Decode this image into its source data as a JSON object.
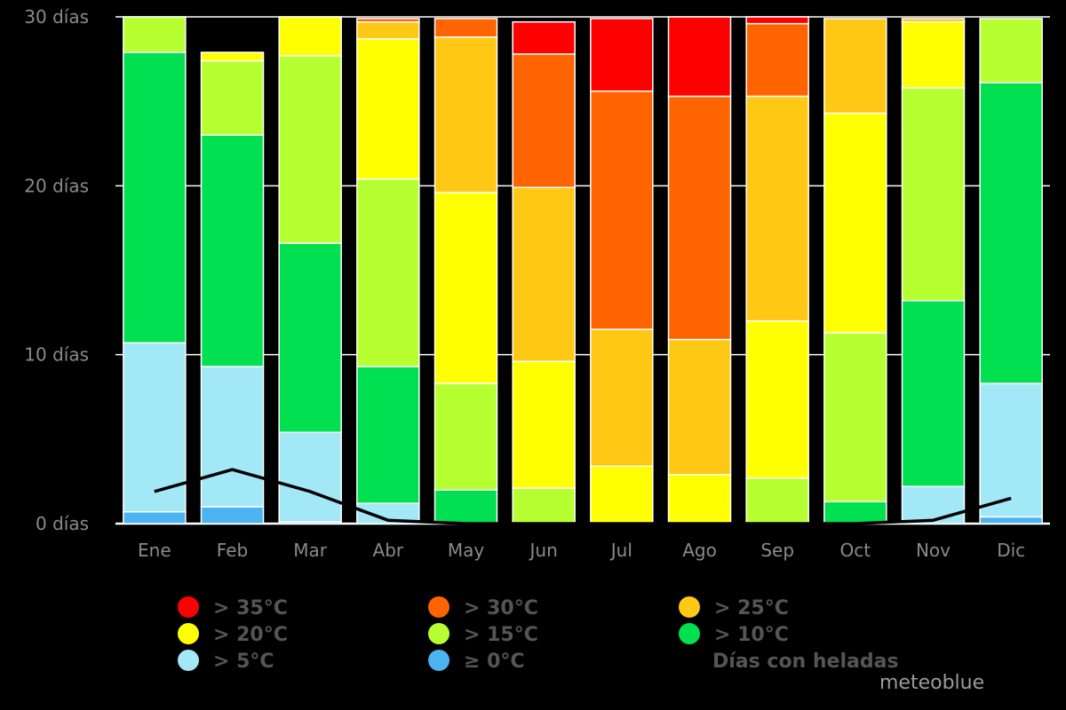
{
  "chart_data": {
    "type": "bar",
    "stacked": true,
    "categories": [
      "Ene",
      "Feb",
      "Mar",
      "Abr",
      "May",
      "Jun",
      "Jul",
      "Ago",
      "Sep",
      "Oct",
      "Nov",
      "Dic"
    ],
    "y_tick_labels": [
      "0 días",
      "10 días",
      "20 días",
      "30 días"
    ],
    "y_ticks": [
      0,
      10,
      20,
      30
    ],
    "ylim": [
      0,
      30
    ],
    "grid": true,
    "legend_position": "bottom",
    "series": [
      {
        "name": "≥ 0°C",
        "color": "#4bb3f0",
        "values": [
          0.7,
          1.0,
          0.1,
          0.0,
          0.0,
          0.0,
          0.0,
          0.0,
          0.0,
          0.0,
          0.0,
          0.4
        ]
      },
      {
        "name": "> 5°C",
        "color": "#a3e8f6",
        "values": [
          10.0,
          8.3,
          5.3,
          1.2,
          0.0,
          0.0,
          0.0,
          0.0,
          0.0,
          0.0,
          2.2,
          7.9
        ]
      },
      {
        "name": "> 10°C",
        "color": "#00e050",
        "values": [
          17.2,
          13.7,
          11.2,
          8.1,
          2.0,
          0.0,
          0.0,
          0.0,
          0.0,
          1.3,
          11.0,
          17.8
        ]
      },
      {
        "name": "> 15°C",
        "color": "#b6ff30",
        "values": [
          2.1,
          4.4,
          11.1,
          11.1,
          6.3,
          2.1,
          0.0,
          0.0,
          2.7,
          10.0,
          12.6,
          3.8
        ]
      },
      {
        "name": "> 20°C",
        "color": "#ffff00",
        "values": [
          0.0,
          0.5,
          2.3,
          8.3,
          11.3,
          7.5,
          3.4,
          2.9,
          9.3,
          13.0,
          3.9,
          0.0
        ]
      },
      {
        "name": "> 25°C",
        "color": "#ffc814",
        "values": [
          0.0,
          0.0,
          0.0,
          1.0,
          9.2,
          10.3,
          8.1,
          8.0,
          13.3,
          5.6,
          0.2,
          0.0
        ]
      },
      {
        "name": "> 30°C",
        "color": "#ff6400",
        "values": [
          0.0,
          0.0,
          0.0,
          0.2,
          1.1,
          7.9,
          14.1,
          14.4,
          4.3,
          0.0,
          0.0,
          0.0
        ]
      },
      {
        "name": "> 35°C",
        "color": "#ff0000",
        "values": [
          0.0,
          0.0,
          0.0,
          0.0,
          0.0,
          1.9,
          4.3,
          4.7,
          0.4,
          0.0,
          0.0,
          0.0
        ]
      }
    ],
    "line_series": {
      "name": "Días con heladas",
      "color": "#000000",
      "values": [
        1.9,
        3.2,
        1.9,
        0.2,
        0.0,
        0.0,
        0.0,
        0.0,
        0.0,
        0.0,
        0.2,
        1.5
      ]
    },
    "legend": {
      "items": [
        {
          "label": "> 35°C",
          "color": "#ff0000"
        },
        {
          "label": "> 30°C",
          "color": "#ff6400"
        },
        {
          "label": "> 25°C",
          "color": "#ffc814"
        },
        {
          "label": "> 20°C",
          "color": "#ffff00"
        },
        {
          "label": "> 15°C",
          "color": "#b6ff30"
        },
        {
          "label": "> 10°C",
          "color": "#00e050"
        },
        {
          "label": "> 5°C",
          "color": "#a3e8f6"
        },
        {
          "label": "≥ 0°C",
          "color": "#4bb3f0"
        },
        {
          "label": "Días con heladas",
          "color": "#000000"
        }
      ]
    }
  },
  "brand": "meteoblue"
}
